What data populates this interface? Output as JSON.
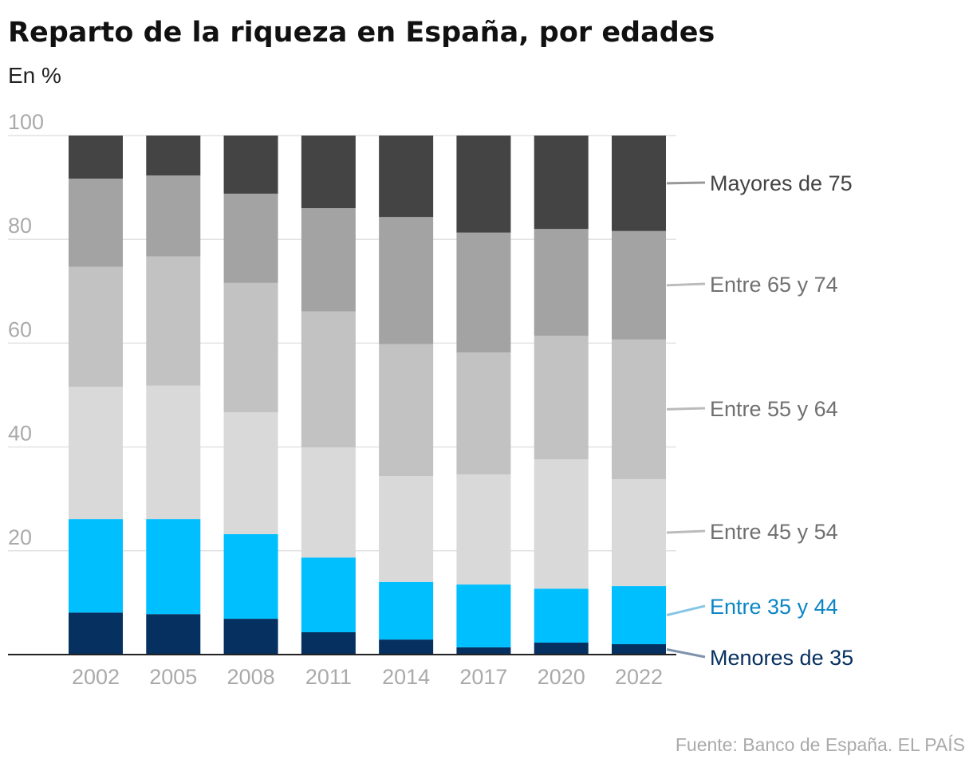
{
  "chart_data": {
    "type": "bar",
    "stacked": true,
    "title": "Reparto de la riqueza en España, por edades",
    "subtitle": "En %",
    "source": "Fuente: Banco de España. EL PAÍS",
    "categories": [
      "2002",
      "2005",
      "2008",
      "2011",
      "2014",
      "2017",
      "2020",
      "2022"
    ],
    "ylim": [
      0,
      100
    ],
    "yticks": [
      20,
      40,
      60,
      80,
      100
    ],
    "grid": true,
    "legend_placement": "right, direct labels",
    "series": [
      {
        "name": "Menores de 35",
        "color": "#06305f",
        "label_color": "#06305f",
        "values": [
          8.1,
          7.8,
          6.9,
          4.3,
          2.9,
          1.4,
          2.3,
          2.0
        ]
      },
      {
        "name": "Entre 35 y 44",
        "color": "#00bfff",
        "label_color": "#0a86c4",
        "values": [
          18.0,
          18.3,
          16.3,
          14.4,
          11.1,
          12.1,
          10.4,
          11.2
        ]
      },
      {
        "name": "Entre 45 y 54",
        "color": "#d9d9d9",
        "label_color": "#707070",
        "values": [
          25.5,
          25.7,
          23.5,
          21.2,
          20.4,
          21.2,
          24.9,
          20.6
        ]
      },
      {
        "name": "Entre 55 y 64",
        "color": "#c2c2c2",
        "label_color": "#707070",
        "values": [
          23.1,
          24.9,
          24.9,
          26.2,
          25.4,
          23.5,
          23.8,
          26.9
        ]
      },
      {
        "name": "Entre 65 y 74",
        "color": "#a3a3a3",
        "label_color": "#707070",
        "values": [
          17.0,
          15.6,
          17.2,
          19.9,
          24.5,
          23.1,
          20.6,
          20.9
        ]
      },
      {
        "name": "Mayores de 75",
        "color": "#444444",
        "label_color": "#444444",
        "values": [
          8.3,
          7.7,
          11.2,
          14.0,
          15.7,
          18.7,
          18.0,
          18.4
        ]
      }
    ]
  }
}
